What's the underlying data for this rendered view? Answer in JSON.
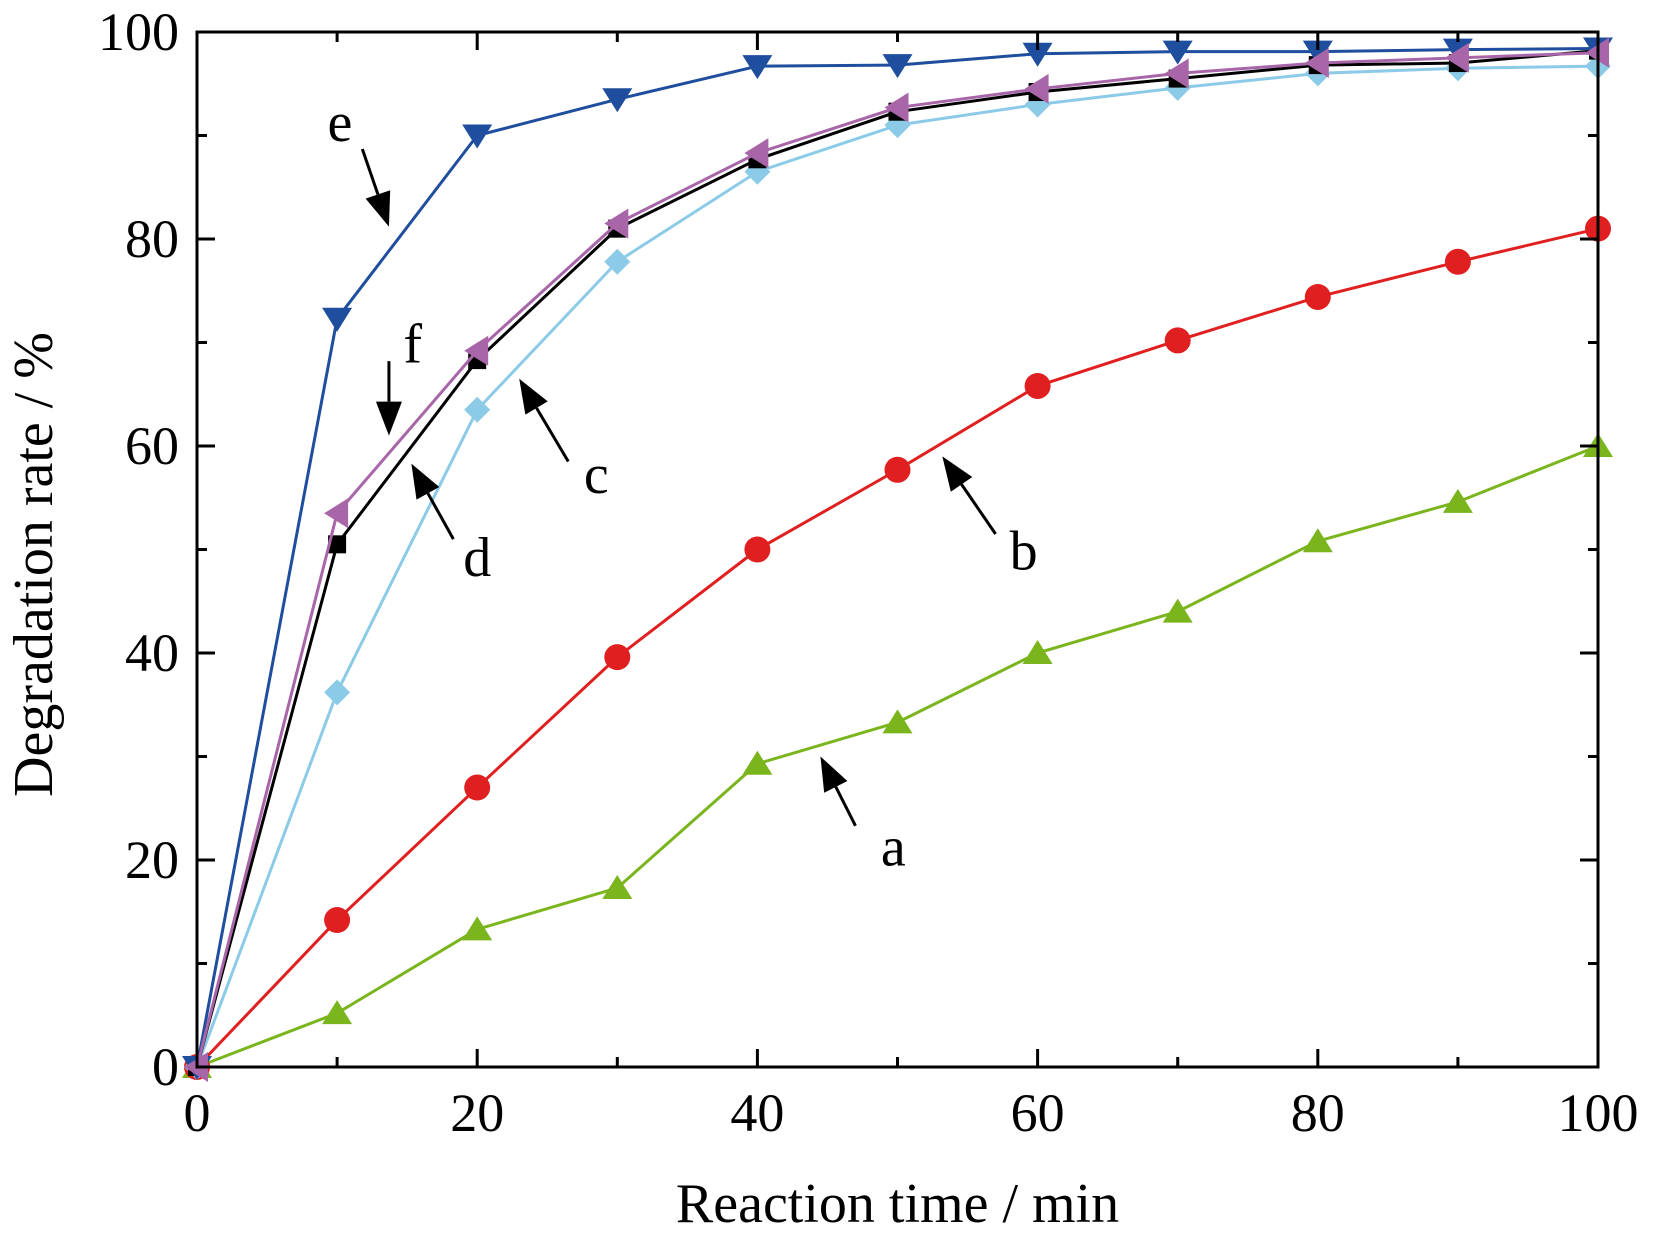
{
  "chart_data": {
    "type": "line",
    "xlabel": "Reaction time / min",
    "ylabel": "Degradation rate / %",
    "xlim": [
      0,
      100
    ],
    "ylim": [
      0,
      100
    ],
    "x_ticks": [
      0,
      20,
      40,
      60,
      80,
      100
    ],
    "y_ticks": [
      0,
      20,
      40,
      60,
      80,
      100
    ],
    "x": [
      0,
      10,
      20,
      30,
      40,
      50,
      60,
      70,
      80,
      90,
      100
    ],
    "grid": false,
    "legend": "none",
    "series": [
      {
        "name": "a",
        "marker": "triangle-up",
        "color": "#7ab51d",
        "values": [
          0,
          5.2,
          13.3,
          17.3,
          29.3,
          33.3,
          40.0,
          44.0,
          50.8,
          54.6,
          60.0
        ]
      },
      {
        "name": "b",
        "marker": "circle",
        "color": "#e02020",
        "values": [
          0,
          14.2,
          27.0,
          39.6,
          50.0,
          57.7,
          65.8,
          70.2,
          74.4,
          77.8,
          81.0
        ]
      },
      {
        "name": "c",
        "marker": "diamond",
        "color": "#8ccbe8",
        "values": [
          0,
          36.2,
          63.5,
          77.8,
          86.5,
          91.0,
          93.0,
          94.6,
          96.0,
          96.5,
          96.7
        ]
      },
      {
        "name": "d",
        "marker": "square",
        "color": "#000000",
        "values": [
          0,
          50.5,
          68.3,
          81.0,
          87.7,
          92.3,
          94.2,
          95.5,
          96.8,
          97.0,
          98.2
        ]
      },
      {
        "name": "e",
        "marker": "triangle-down",
        "color": "#1f4e9e",
        "values": [
          0,
          72.3,
          90.0,
          93.5,
          96.7,
          96.8,
          97.9,
          98.1,
          98.1,
          98.3,
          98.4
        ]
      },
      {
        "name": "f",
        "marker": "triangle-left",
        "color": "#a866a8",
        "values": [
          0,
          53.5,
          69.2,
          81.5,
          88.3,
          92.7,
          94.5,
          96.0,
          97.0,
          97.5,
          98.0
        ]
      }
    ],
    "annotations": [
      {
        "label": "a",
        "text_x": 49.7,
        "text_y": 21.2,
        "arrow_from_x": 47.0,
        "arrow_from_y": 23.3,
        "arrow_to_x": 44.5,
        "arrow_to_y": 30.0
      },
      {
        "label": "b",
        "text_x": 59.0,
        "text_y": 49.8,
        "arrow_from_x": 57.0,
        "arrow_from_y": 51.5,
        "arrow_to_x": 53.2,
        "arrow_to_y": 59.0
      },
      {
        "label": "c",
        "text_x": 28.5,
        "text_y": 57.2,
        "arrow_from_x": 26.5,
        "arrow_from_y": 58.5,
        "arrow_to_x": 23.0,
        "arrow_to_y": 66.5
      },
      {
        "label": "d",
        "text_x": 20.0,
        "text_y": 49.2,
        "arrow_from_x": 18.3,
        "arrow_from_y": 51.0,
        "arrow_to_x": 15.3,
        "arrow_to_y": 58.3
      },
      {
        "label": "e",
        "text_x": 10.2,
        "text_y": 91.2,
        "arrow_from_x": 11.8,
        "arrow_from_y": 88.7,
        "arrow_to_x": 13.7,
        "arrow_to_y": 81.2
      },
      {
        "label": "f",
        "text_x": 15.4,
        "text_y": 69.8,
        "arrow_from_x": 13.7,
        "arrow_from_y": 68.2,
        "arrow_to_x": 13.7,
        "arrow_to_y": 61.0
      }
    ]
  }
}
